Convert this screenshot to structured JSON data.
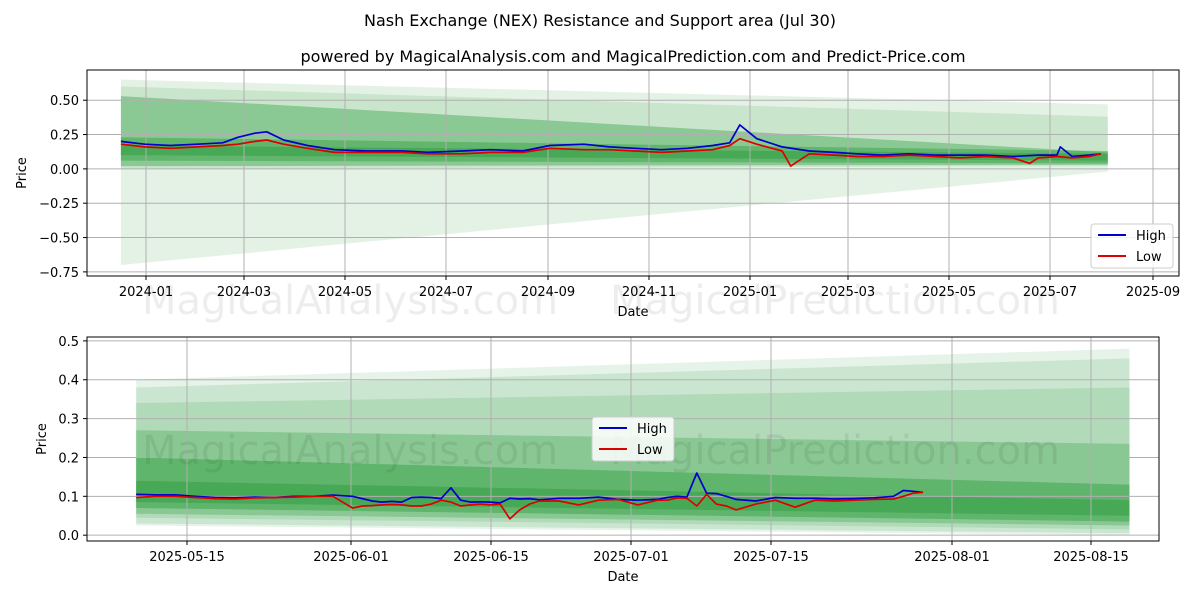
{
  "figure": {
    "title": "Nash Exchange (NEX) Resistance and Support area (Jul 30)",
    "subtitle": "powered by MagicalAnalysis.com and MagicalPrediction.com and Predict-Price.com",
    "watermarks": [
      "MagicalAnalysis.com",
      "MagicalPrediction.com"
    ]
  },
  "colors": {
    "high": "#0000cc",
    "low": "#dd0000",
    "band": "#2e9e3e",
    "grid": "#b0b0b0"
  },
  "chart_data": [
    {
      "type": "line",
      "xlabel": "Date",
      "ylabel": "Price",
      "x_ticks": [
        "2024-01",
        "2024-03",
        "2024-05",
        "2024-07",
        "2024-09",
        "2024-11",
        "2025-01",
        "2025-03",
        "2025-05",
        "2025-07",
        "2025-09"
      ],
      "y_ticks": [
        "0.50",
        "0.25",
        "0.00",
        "−0.25",
        "−0.50",
        "−0.75"
      ],
      "xlim": [
        "2023-12-07",
        "2025-09-11"
      ],
      "ylim": [
        -0.78,
        0.72
      ],
      "grid": true,
      "legend": "lower right",
      "legend_labels": [
        "High",
        "Low"
      ],
      "bands": [
        {
          "x": [
            "2023-12-27",
            "2025-07-31"
          ],
          "upper_start": 0.65,
          "upper_end": 0.47,
          "lower_start": -0.7,
          "lower_end": -0.02,
          "opacity": 0.13
        },
        {
          "x": [
            "2023-12-27",
            "2025-07-31"
          ],
          "upper_start": 0.6,
          "upper_end": 0.38,
          "lower_start": 0.0,
          "lower_end": 0.02,
          "opacity": 0.15
        },
        {
          "x": [
            "2023-12-27",
            "2025-07-31"
          ],
          "upper_start": 0.53,
          "upper_end": 0.12,
          "lower_start": 0.02,
          "lower_end": 0.03,
          "opacity": 0.4
        },
        {
          "x": [
            "2023-12-27",
            "2025-07-31"
          ],
          "upper_start": 0.23,
          "upper_end": 0.13,
          "lower_start": 0.06,
          "lower_end": 0.04,
          "opacity": 0.45
        },
        {
          "x": [
            "2023-12-27",
            "2025-07-31"
          ],
          "upper_start": 0.17,
          "upper_end": 0.11,
          "lower_start": 0.1,
          "lower_end": 0.06,
          "opacity": 0.5
        }
      ],
      "series": [
        {
          "name": "High",
          "x": [
            "2023-12-27",
            "2024-01-10",
            "2024-01-25",
            "2024-02-10",
            "2024-02-25",
            "2024-03-05",
            "2024-03-15",
            "2024-03-22",
            "2024-04-01",
            "2024-04-15",
            "2024-05-01",
            "2024-05-20",
            "2024-06-10",
            "2024-06-25",
            "2024-07-15",
            "2024-08-01",
            "2024-08-20",
            "2024-09-05",
            "2024-09-25",
            "2024-10-10",
            "2024-10-25",
            "2024-11-10",
            "2024-11-25",
            "2024-12-10",
            "2024-12-20",
            "2024-12-26",
            "2025-01-05",
            "2025-01-20",
            "2025-02-05",
            "2025-02-20",
            "2025-03-05",
            "2025-03-20",
            "2025-04-05",
            "2025-04-20",
            "2025-05-05",
            "2025-05-20",
            "2025-06-05",
            "2025-06-20",
            "2025-07-01",
            "2025-07-03",
            "2025-07-10",
            "2025-07-20",
            "2025-07-27"
          ],
          "values": [
            0.2,
            0.18,
            0.17,
            0.18,
            0.19,
            0.23,
            0.26,
            0.27,
            0.21,
            0.17,
            0.14,
            0.13,
            0.13,
            0.12,
            0.13,
            0.14,
            0.13,
            0.17,
            0.18,
            0.16,
            0.15,
            0.14,
            0.15,
            0.17,
            0.19,
            0.32,
            0.22,
            0.16,
            0.13,
            0.12,
            0.11,
            0.1,
            0.11,
            0.1,
            0.1,
            0.1,
            0.09,
            0.1,
            0.1,
            0.16,
            0.09,
            0.1,
            0.11
          ]
        },
        {
          "name": "Low",
          "x": [
            "2023-12-27",
            "2024-01-10",
            "2024-01-25",
            "2024-02-10",
            "2024-02-25",
            "2024-03-05",
            "2024-03-15",
            "2024-03-22",
            "2024-04-01",
            "2024-04-15",
            "2024-05-01",
            "2024-05-20",
            "2024-06-10",
            "2024-06-25",
            "2024-07-15",
            "2024-08-01",
            "2024-08-20",
            "2024-09-05",
            "2024-09-25",
            "2024-10-10",
            "2024-10-25",
            "2024-11-10",
            "2024-11-25",
            "2024-12-10",
            "2024-12-20",
            "2024-12-26",
            "2025-01-05",
            "2025-01-20",
            "2025-01-25",
            "2025-02-05",
            "2025-02-20",
            "2025-03-05",
            "2025-03-20",
            "2025-04-05",
            "2025-04-20",
            "2025-05-05",
            "2025-05-20",
            "2025-06-05",
            "2025-06-15",
            "2025-06-20",
            "2025-07-01",
            "2025-07-10",
            "2025-07-20",
            "2025-07-27"
          ],
          "values": [
            0.18,
            0.16,
            0.15,
            0.16,
            0.17,
            0.18,
            0.2,
            0.21,
            0.18,
            0.15,
            0.12,
            0.12,
            0.12,
            0.11,
            0.11,
            0.12,
            0.12,
            0.15,
            0.14,
            0.14,
            0.13,
            0.12,
            0.13,
            0.14,
            0.17,
            0.22,
            0.18,
            0.13,
            0.02,
            0.11,
            0.1,
            0.09,
            0.09,
            0.1,
            0.09,
            0.08,
            0.09,
            0.08,
            0.04,
            0.08,
            0.09,
            0.08,
            0.09,
            0.11
          ]
        }
      ]
    },
    {
      "type": "line",
      "xlabel": "Date",
      "ylabel": "Price",
      "x_ticks": [
        "2025-05-15",
        "2025-06-01",
        "2025-06-15",
        "2025-07-01",
        "2025-07-15",
        "2025-08-01",
        "2025-08-15"
      ],
      "y_ticks": [
        "0.5",
        "0.4",
        "0.3",
        "0.2",
        "0.1",
        "0.0"
      ],
      "xlim": [
        "2025-05-03",
        "2025-08-20"
      ],
      "ylim": [
        -0.015,
        0.51
      ],
      "grid": true,
      "legend": "center",
      "legend_labels": [
        "High",
        "Low"
      ],
      "bands": [
        {
          "x": [
            "2025-05-08",
            "2025-08-17"
          ],
          "upper_start": 0.4,
          "upper_end": 0.48,
          "lower_start": 0.025,
          "lower_end": 0.0,
          "opacity": 0.12
        },
        {
          "x": [
            "2025-05-08",
            "2025-08-17"
          ],
          "upper_start": 0.38,
          "upper_end": 0.455,
          "lower_start": 0.03,
          "lower_end": 0.005,
          "opacity": 0.14
        },
        {
          "x": [
            "2025-05-08",
            "2025-08-17"
          ],
          "upper_start": 0.34,
          "upper_end": 0.38,
          "lower_start": 0.045,
          "lower_end": 0.015,
          "opacity": 0.16
        },
        {
          "x": [
            "2025-05-08",
            "2025-08-17"
          ],
          "upper_start": 0.27,
          "upper_end": 0.235,
          "lower_start": 0.055,
          "lower_end": 0.025,
          "opacity": 0.3
        },
        {
          "x": [
            "2025-05-08",
            "2025-08-17"
          ],
          "upper_start": 0.2,
          "upper_end": 0.13,
          "lower_start": 0.07,
          "lower_end": 0.035,
          "opacity": 0.45
        },
        {
          "x": [
            "2025-05-08",
            "2025-08-17"
          ],
          "upper_start": 0.14,
          "upper_end": 0.09,
          "lower_start": 0.085,
          "lower_end": 0.05,
          "opacity": 0.5
        }
      ],
      "series": [
        {
          "name": "High",
          "x": [
            "2025-05-08",
            "2025-05-10",
            "2025-05-12",
            "2025-05-14",
            "2025-05-16",
            "2025-05-18",
            "2025-05-20",
            "2025-05-22",
            "2025-05-24",
            "2025-05-26",
            "2025-05-28",
            "2025-05-30",
            "2025-06-01",
            "2025-06-02",
            "2025-06-03",
            "2025-06-04",
            "2025-06-05",
            "2025-06-06",
            "2025-06-07",
            "2025-06-08",
            "2025-06-09",
            "2025-06-10",
            "2025-06-11",
            "2025-06-12",
            "2025-06-13",
            "2025-06-14",
            "2025-06-15",
            "2025-06-16",
            "2025-06-17",
            "2025-06-18",
            "2025-06-20",
            "2025-06-22",
            "2025-06-24",
            "2025-06-26",
            "2025-06-28",
            "2025-06-30",
            "2025-07-01",
            "2025-07-02",
            "2025-07-03",
            "2025-07-04",
            "2025-07-05",
            "2025-07-06",
            "2025-07-07",
            "2025-07-08",
            "2025-07-10",
            "2025-07-12",
            "2025-07-14",
            "2025-07-16",
            "2025-07-18",
            "2025-07-20",
            "2025-07-22",
            "2025-07-24",
            "2025-07-25",
            "2025-07-26",
            "2025-07-27"
          ],
          "values": [
            0.105,
            0.104,
            0.104,
            0.1,
            0.097,
            0.096,
            0.098,
            0.097,
            0.1,
            0.1,
            0.103,
            0.1,
            0.088,
            0.085,
            0.087,
            0.085,
            0.097,
            0.098,
            0.097,
            0.094,
            0.122,
            0.09,
            0.085,
            0.086,
            0.085,
            0.083,
            0.095,
            0.093,
            0.094,
            0.091,
            0.095,
            0.095,
            0.098,
            0.092,
            0.09,
            0.092,
            0.097,
            0.1,
            0.098,
            0.16,
            0.108,
            0.107,
            0.1,
            0.092,
            0.088,
            0.097,
            0.095,
            0.095,
            0.093,
            0.094,
            0.096,
            0.1,
            0.115,
            0.113,
            0.11
          ]
        },
        {
          "name": "Low",
          "x": [
            "2025-05-08",
            "2025-05-10",
            "2025-05-12",
            "2025-05-14",
            "2025-05-16",
            "2025-05-18",
            "2025-05-20",
            "2025-05-22",
            "2025-05-24",
            "2025-05-26",
            "2025-05-28",
            "2025-05-30",
            "2025-05-31",
            "2025-06-01",
            "2025-06-02",
            "2025-06-03",
            "2025-06-04",
            "2025-06-05",
            "2025-06-06",
            "2025-06-07",
            "2025-06-08",
            "2025-06-09",
            "2025-06-10",
            "2025-06-11",
            "2025-06-12",
            "2025-06-13",
            "2025-06-14",
            "2025-06-15",
            "2025-06-16",
            "2025-06-17",
            "2025-06-18",
            "2025-06-20",
            "2025-06-22",
            "2025-06-24",
            "2025-06-26",
            "2025-06-28",
            "2025-06-30",
            "2025-07-01",
            "2025-07-02",
            "2025-07-03",
            "2025-07-04",
            "2025-07-05",
            "2025-07-06",
            "2025-07-07",
            "2025-07-08",
            "2025-07-10",
            "2025-07-12",
            "2025-07-14",
            "2025-07-16",
            "2025-07-18",
            "2025-07-20",
            "2025-07-22",
            "2025-07-24",
            "2025-07-25",
            "2025-07-26",
            "2025-07-27"
          ],
          "values": [
            0.097,
            0.1,
            0.1,
            0.097,
            0.094,
            0.093,
            0.096,
            0.097,
            0.098,
            0.1,
            0.1,
            0.07,
            0.075,
            0.076,
            0.078,
            0.079,
            0.078,
            0.075,
            0.075,
            0.08,
            0.09,
            0.085,
            0.075,
            0.078,
            0.08,
            0.078,
            0.08,
            0.042,
            0.065,
            0.08,
            0.088,
            0.088,
            0.078,
            0.09,
            0.092,
            0.078,
            0.09,
            0.09,
            0.096,
            0.095,
            0.075,
            0.105,
            0.08,
            0.075,
            0.065,
            0.08,
            0.09,
            0.072,
            0.09,
            0.088,
            0.09,
            0.092,
            0.093,
            0.1,
            0.108,
            0.11
          ]
        }
      ]
    }
  ]
}
